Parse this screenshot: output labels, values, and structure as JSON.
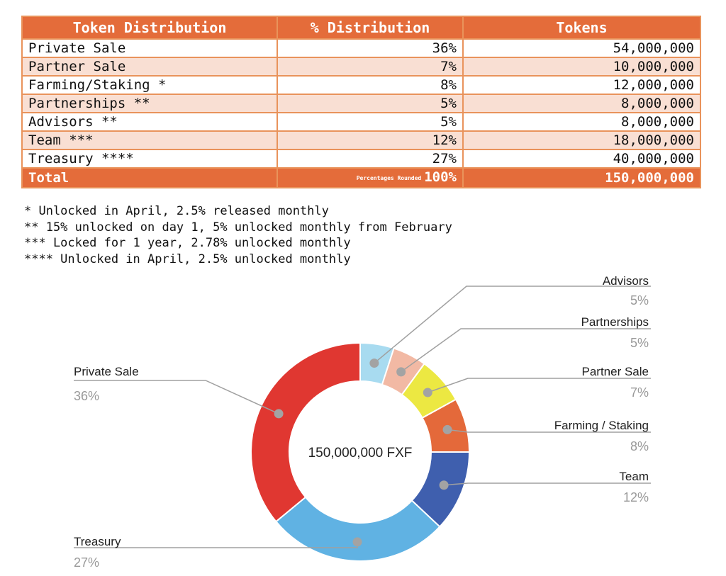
{
  "table": {
    "headers": [
      "Token Distribution",
      "% Distribution",
      "Tokens"
    ],
    "rows": [
      {
        "name": "Private Sale",
        "pct": "36%",
        "tokens": "54,000,000"
      },
      {
        "name": "Partner Sale",
        "pct": "7%",
        "tokens": "10,000,000"
      },
      {
        "name": "Farming/Staking *",
        "pct": "8%",
        "tokens": "12,000,000"
      },
      {
        "name": "Partnerships **",
        "pct": "5%",
        "tokens": "8,000,000"
      },
      {
        "name": "Advisors **",
        "pct": "5%",
        "tokens": "8,000,000"
      },
      {
        "name": "Team ***",
        "pct": "12%",
        "tokens": "18,000,000"
      },
      {
        "name": "Treasury ****",
        "pct": "27%",
        "tokens": "40,000,000"
      }
    ],
    "total": {
      "label": "Total",
      "note": "Percentages Rounded",
      "pct": "100%",
      "tokens": "150,000,000"
    },
    "colors": {
      "header": "#e46c3a",
      "stripe": "#f9dfd3",
      "border": "#e9935b"
    }
  },
  "footnotes": [
    "* Unlocked in April, 2.5% released monthly",
    "** 15% unlocked on day 1, 5% unlocked monthly from February",
    "*** Locked for 1 year, 2.78% unlocked monthly",
    "**** Unlocked in April, 2.5% unlocked monthly"
  ],
  "chart_data": {
    "type": "pie",
    "variant": "donut",
    "center_label": "150,000,000 FXF",
    "start": "12 o'clock, clockwise",
    "slices": [
      {
        "label": "Advisors",
        "value": 5,
        "pct_label": "5%",
        "color": "#a8dbf0",
        "label_side": "right"
      },
      {
        "label": "Partnerships",
        "value": 5,
        "pct_label": "5%",
        "color": "#f2b9a4",
        "label_side": "right"
      },
      {
        "label": "Partner Sale",
        "value": 7,
        "pct_label": "7%",
        "color": "#ece842",
        "label_side": "right"
      },
      {
        "label": "Farming / Staking",
        "value": 8,
        "pct_label": "8%",
        "color": "#e4693a",
        "label_side": "right"
      },
      {
        "label": "Team",
        "value": 12,
        "pct_label": "12%",
        "color": "#3f5fae",
        "label_side": "right"
      },
      {
        "label": "Treasury",
        "value": 27,
        "pct_label": "27%",
        "color": "#60b2e3",
        "label_side": "left"
      },
      {
        "label": "Private Sale",
        "value": 36,
        "pct_label": "36%",
        "color": "#e03731",
        "label_side": "left"
      }
    ]
  }
}
